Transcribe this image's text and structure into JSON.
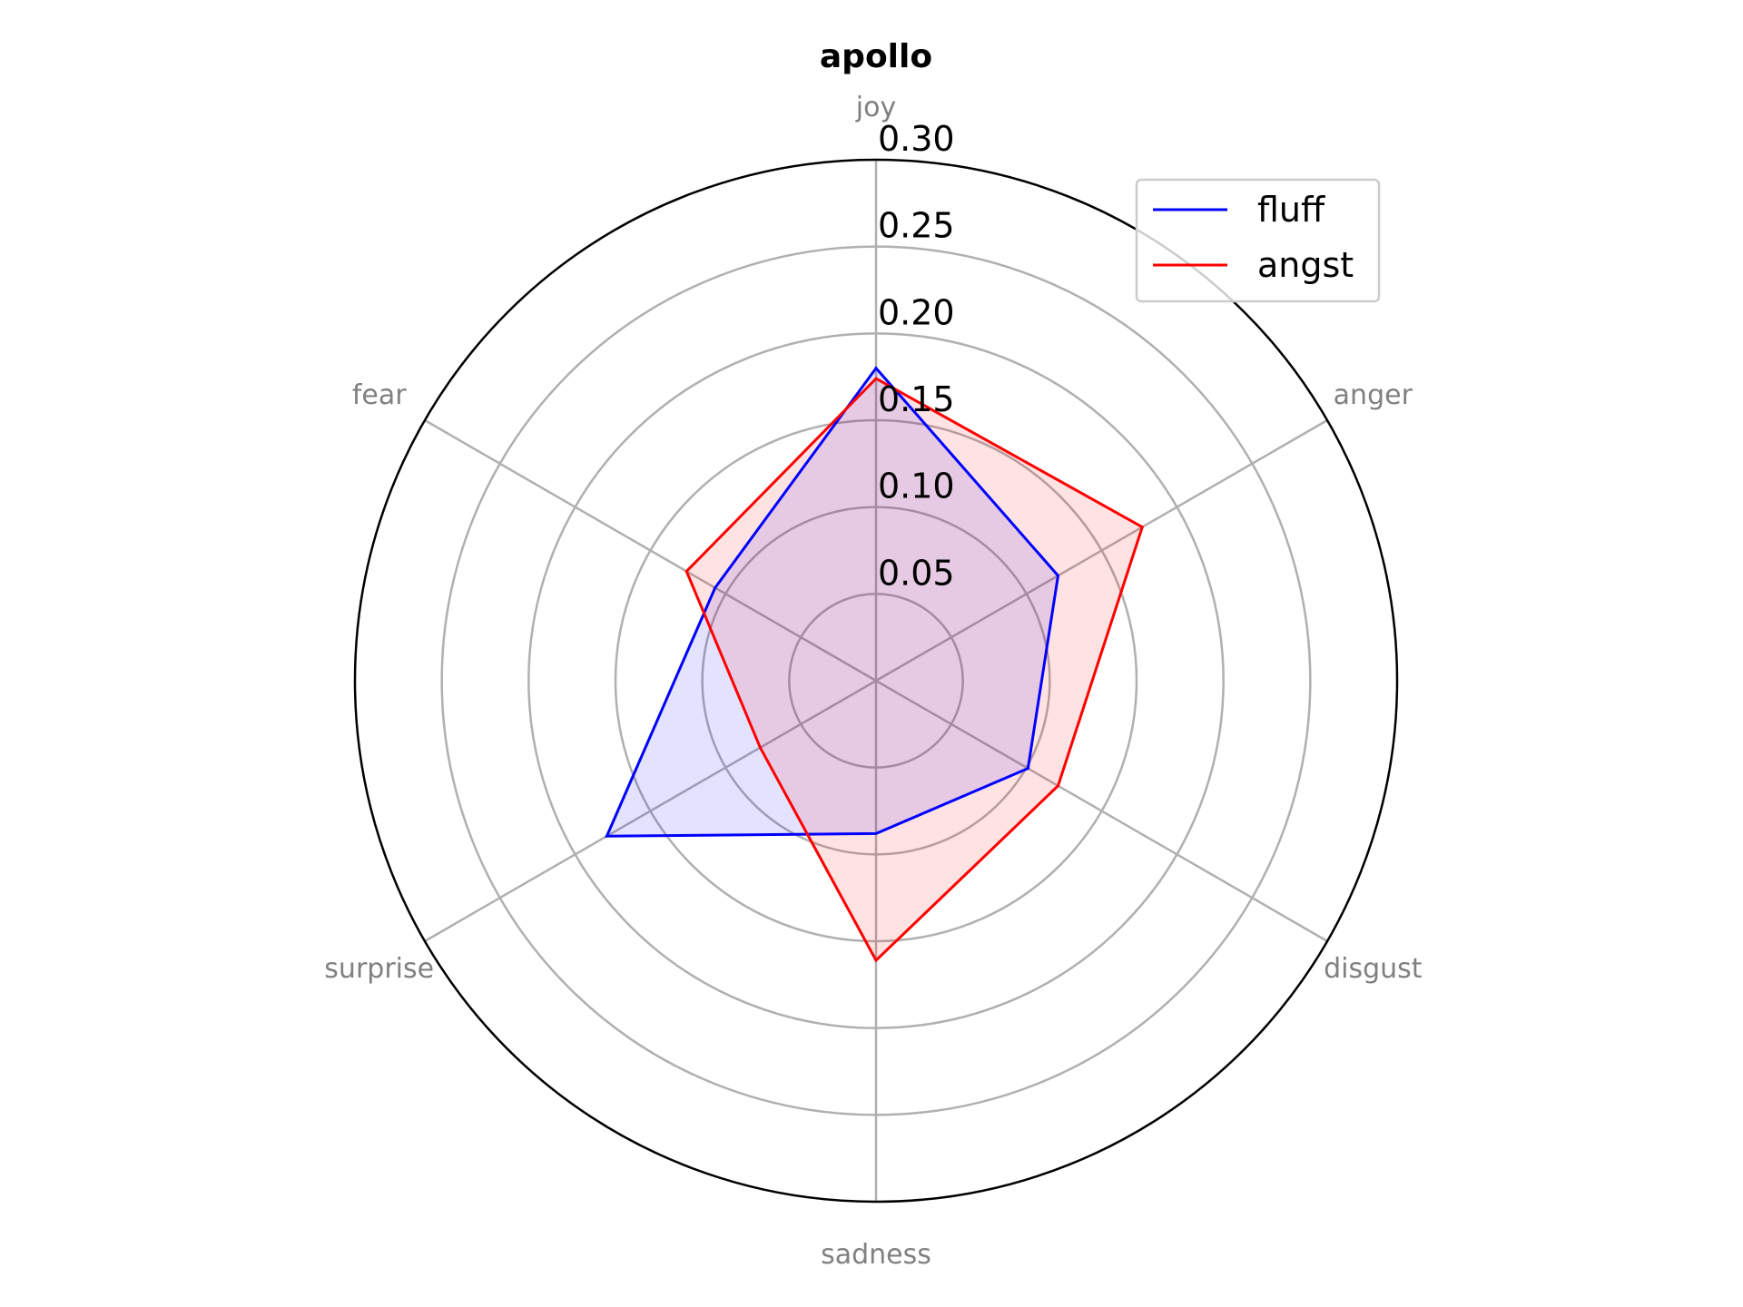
{
  "chart_data": {
    "type": "radar",
    "title": "apollo",
    "categories": [
      "joy",
      "anger",
      "disgust",
      "sadness",
      "surprise",
      "fear"
    ],
    "radial_ticks": [
      "0.05",
      "0.10",
      "0.15",
      "0.20",
      "0.25",
      "0.30"
    ],
    "radial_tick_values": [
      0.05,
      0.1,
      0.15,
      0.2,
      0.25,
      0.3
    ],
    "rlim": [
      0,
      0.3
    ],
    "grid": true,
    "legend_position": "top-right",
    "series": [
      {
        "name": "fluff",
        "color": "#0000ff",
        "fill": "#0000ff",
        "values": [
          0.18,
          0.121,
          0.101,
          0.088,
          0.179,
          0.107
        ]
      },
      {
        "name": "angst",
        "color": "#ff0000",
        "fill": "#ff0000",
        "values": [
          0.174,
          0.177,
          0.121,
          0.161,
          0.077,
          0.126
        ]
      }
    ]
  }
}
